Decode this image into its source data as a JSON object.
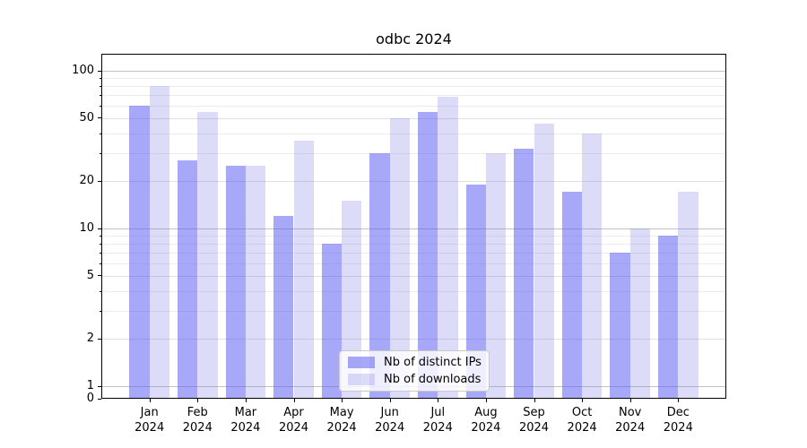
{
  "title": "odbc 2024",
  "chart_data": {
    "type": "bar",
    "title": "odbc 2024",
    "categories": [
      "Jan 2024",
      "Feb 2024",
      "Mar 2024",
      "Apr 2024",
      "May 2024",
      "Jun 2024",
      "Jul 2024",
      "Aug 2024",
      "Sep 2024",
      "Oct 2024",
      "Nov 2024",
      "Dec 2024"
    ],
    "series": [
      {
        "name": "Nb of distinct IPs",
        "color_hex": "#a8a8f5",
        "color_rgba": "rgba(90,90,242,0.53)",
        "values": [
          60,
          27,
          25,
          12,
          8,
          30,
          55,
          19,
          32,
          17,
          7,
          9
        ]
      },
      {
        "name": "Nb of downloads",
        "color_hex": "#dcdcf9",
        "color_rgba": "rgba(126,126,232,0.27)",
        "values": [
          80,
          55,
          25,
          36,
          15,
          50,
          68,
          30,
          46,
          40,
          10,
          17
        ]
      }
    ],
    "xlabel": "",
    "ylabel": "",
    "yscale": "log (with 0 baseline)",
    "yticks": [
      0,
      1,
      2,
      5,
      10,
      20,
      50,
      100
    ],
    "minor_grid_values": [
      3,
      4,
      6,
      7,
      8,
      9,
      30,
      40,
      60,
      70,
      80,
      90
    ],
    "major_grid_values": [
      1,
      10,
      100
    ],
    "labeled_grid_values": [
      2,
      5,
      20,
      50
    ],
    "ylim": [
      0,
      128
    ],
    "grid": true,
    "legend_position": "bottom-center"
  },
  "legend": {
    "items": [
      {
        "label": "Nb of distinct IPs"
      },
      {
        "label": "Nb of downloads"
      }
    ]
  },
  "colors": {
    "background": "#ffffff",
    "axis": "#000000",
    "major_gridline": "#c2c2c2",
    "labeled_gridline": "#e0e0e0",
    "minor_gridline": "#ececec",
    "text": "#000000",
    "legend_border": "#c9c9c9"
  }
}
